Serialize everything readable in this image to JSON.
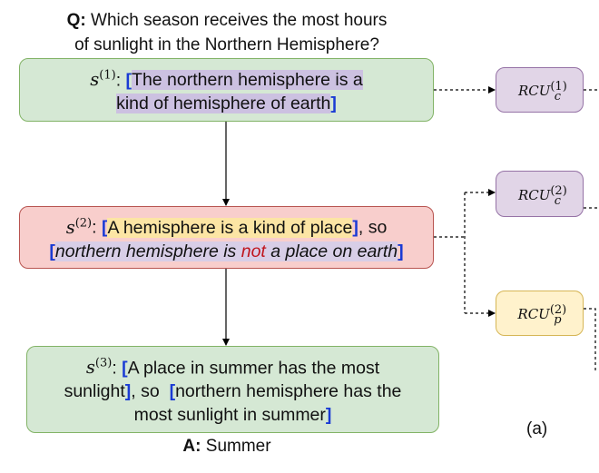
{
  "question": {
    "prefix": "Q:",
    "line1": "Which season receives the most hours",
    "line2": "of sunlight in the Northern Hemisphere?"
  },
  "answer": {
    "prefix": "A:",
    "text": "Summer"
  },
  "steps": [
    {
      "label": "s",
      "index": "(1)",
      "open": "[",
      "text1": "The northern hemisphere is a",
      "text2": "kind of hemisphere of earth",
      "close": "]"
    },
    {
      "label": "s",
      "index": "(2)",
      "part1_open": "[",
      "part1": "A hemisphere is a kind of place",
      "part1_close": "]",
      "connector": ", so",
      "part2_open": "[",
      "part2_a": "northern hemisphere is ",
      "part2_neg": "not",
      "part2_b": " a place on earth",
      "part2_close": "]"
    },
    {
      "label": "s",
      "index": "(3)",
      "part1_open": "[",
      "part1a": "A place in summer has the most",
      "part1b": "sunlight",
      "part1_close": "]",
      "connector": ", so",
      "part2_open": "[",
      "part2a": "northern hemisphere has the",
      "part2b": "most sunlight in summer",
      "part2_close": "]"
    }
  ],
  "rcu": [
    {
      "name": "RCU",
      "sub": "c",
      "sup": "(1)",
      "color": "#e1d5e7"
    },
    {
      "name": "RCU",
      "sub": "c",
      "sup": "(2)",
      "color": "#e1d5e7"
    },
    {
      "name": "RCU",
      "sub": "p",
      "sup": "(2)",
      "color": "#fff2cc"
    }
  ],
  "panel_tag": "(a)"
}
